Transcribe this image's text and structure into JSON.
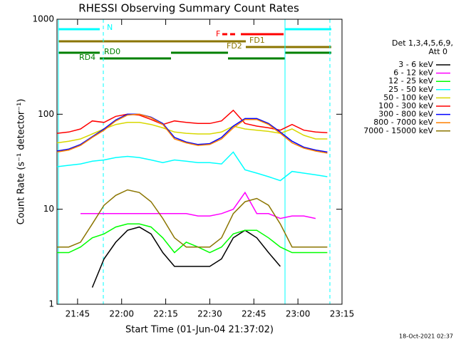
{
  "chart_data": {
    "type": "line",
    "title": "RHESSI Observing Summary Count Rates",
    "x_label": "Start Time (01-Jun-04 21:37:02)",
    "y_label": "Count Rate (s⁻¹ detector⁻¹)",
    "legend_title": [
      "Det 1,3,4,5,6,9,",
      "Att 0"
    ],
    "timestamp": "18-Oct-2021 02:37",
    "log_y": true,
    "ylim": [
      1,
      1000
    ],
    "yticks": [
      1,
      10,
      100,
      1000
    ],
    "xlim": [
      "21:38",
      "23:15"
    ],
    "xticks": [
      "21:45",
      "22:00",
      "22:15",
      "22:30",
      "22:45",
      "23:00",
      "23:15"
    ],
    "flags": {
      "night": "N",
      "flare": "F",
      "fast_data_1": "FD1",
      "fast_data_2": "FD2",
      "rear_decimation_0": "RD0",
      "rear_decimation_4": "RD4"
    },
    "x": [
      "21:38",
      "21:42",
      "21:46",
      "21:50",
      "21:54",
      "21:58",
      "22:02",
      "22:06",
      "22:10",
      "22:14",
      "22:18",
      "22:22",
      "22:26",
      "22:30",
      "22:34",
      "22:38",
      "22:42",
      "22:46",
      "22:50",
      "22:54",
      "22:58",
      "23:02",
      "23:06",
      "23:10"
    ],
    "series": [
      {
        "name": "3 - 6 keV",
        "color": "#000000",
        "values": [
          null,
          null,
          null,
          1.5,
          3,
          4.5,
          6,
          6.5,
          5.5,
          3.5,
          2.5,
          2.5,
          2.5,
          2.5,
          3,
          5,
          6,
          5,
          3.5,
          2.5,
          null,
          null,
          null,
          null
        ]
      },
      {
        "name": "6 - 12 keV",
        "color": "#ff00ff",
        "values": [
          null,
          null,
          9,
          9,
          9,
          9,
          9,
          9,
          9,
          9,
          9,
          9,
          8.5,
          8.5,
          9,
          10,
          15,
          9,
          9,
          8,
          8.5,
          8.5,
          8,
          null
        ]
      },
      {
        "name": "12 - 25 keV",
        "color": "#00ff00",
        "values": [
          3.5,
          3.5,
          4,
          5,
          5.5,
          6.5,
          7,
          7,
          6.5,
          5,
          3.5,
          4.5,
          4,
          3.5,
          4,
          5.5,
          6,
          6,
          5,
          4,
          3.5,
          3.5,
          3.5,
          3.5
        ]
      },
      {
        "name": "25 - 50 keV",
        "color": "#00ffff",
        "values": [
          28,
          29,
          30,
          32,
          33,
          35,
          36,
          35,
          33,
          31,
          33,
          32,
          31,
          31,
          30,
          40,
          26,
          24,
          22,
          20,
          25,
          24,
          23,
          22
        ]
      },
      {
        "name": "50 - 100 keV",
        "color": "#d8d800",
        "values": [
          50,
          52,
          55,
          62,
          70,
          78,
          82,
          82,
          78,
          72,
          65,
          63,
          62,
          62,
          65,
          75,
          70,
          68,
          66,
          63,
          70,
          60,
          55,
          55
        ]
      },
      {
        "name": "100 - 300 keV",
        "color": "#ff0000",
        "values": [
          63,
          65,
          70,
          85,
          82,
          95,
          100,
          98,
          88,
          78,
          85,
          82,
          80,
          80,
          85,
          110,
          80,
          75,
          72,
          68,
          78,
          68,
          65,
          64
        ]
      },
      {
        "name": "300 - 800 keV",
        "color": "#0000ff",
        "values": [
          41,
          43,
          48,
          58,
          70,
          87,
          100,
          100,
          93,
          80,
          57,
          51,
          48,
          49,
          57,
          75,
          90,
          90,
          80,
          65,
          52,
          45,
          42,
          40
        ]
      },
      {
        "name": "800 - 7000 keV",
        "color": "#ff8000",
        "values": [
          40,
          42,
          47,
          57,
          68,
          85,
          98,
          100,
          92,
          78,
          55,
          50,
          47,
          48,
          55,
          72,
          88,
          88,
          78,
          63,
          50,
          44,
          41,
          39
        ]
      },
      {
        "name": "7000 - 15000 keV",
        "color": "#8b7500",
        "values": [
          4,
          4,
          4.5,
          7,
          11,
          14,
          16,
          15,
          12,
          8,
          5,
          4,
          4,
          4,
          5,
          9,
          12,
          13,
          11,
          7,
          4,
          4,
          4,
          4
        ]
      }
    ]
  }
}
